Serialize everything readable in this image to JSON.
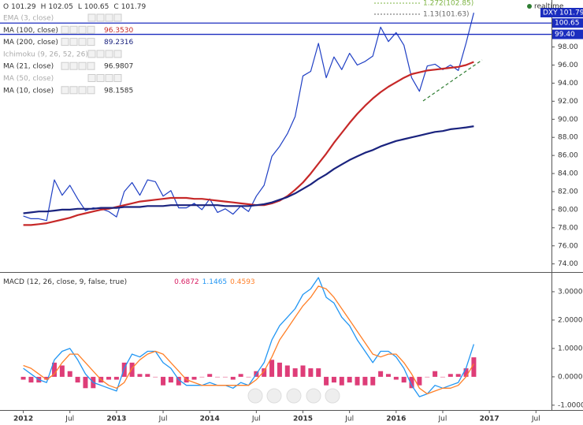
{
  "chart_data": [
    {
      "type": "line",
      "symbol": "DXY",
      "realtime": "realtime",
      "ohlc": [
        {
          "label": "O",
          "value": 101.29
        },
        {
          "label": "H",
          "value": 102.05
        },
        {
          "label": "L",
          "value": 100.65
        },
        {
          "label": "C",
          "value": 101.79
        }
      ],
      "indicators": [
        {
          "name": "EMA (3, close)",
          "muted": true
        },
        {
          "name": "MA (100, close)",
          "value": {
            "value": 96.353,
            "label": "96.3530"
          },
          "color": "#c62828"
        },
        {
          "name": "MA (200, close)",
          "value": {
            "value": 89.2316,
            "label": "89.2316"
          },
          "color": "#1a237e"
        },
        {
          "name": "Ichimoku (9, 26, 52, 26)",
          "muted": true
        },
        {
          "name": "MA (21, close)",
          "value": {
            "value": 96.9807,
            "label": "96.9807"
          },
          "color": "#333333"
        },
        {
          "name": "MA (50, close)",
          "muted": true
        },
        {
          "name": "MA (10, close)",
          "value": {
            "value": 98.1585,
            "label": "98.1585"
          },
          "color": "#333333"
        }
      ],
      "levels": [
        {
          "value": 100.65,
          "color": "#1b2dbf"
        },
        {
          "value": 99.4,
          "label": "99.40",
          "color": "#1b2dbf"
        }
      ],
      "fib": [
        {
          "label": "1.272(102.85)",
          "value": 102.85,
          "color": "#7cb342"
        },
        {
          "label": "1.13(101.63)",
          "value": 101.63,
          "color": "#666666"
        }
      ],
      "xlim": [
        "2011-10",
        "2017-09"
      ],
      "ylim": [
        73.1,
        103.2
      ],
      "yticks": [
        {
          "value": 74,
          "label": "74.00"
        },
        {
          "value": 76,
          "label": "76.00"
        },
        {
          "value": 78,
          "label": "78.00"
        },
        {
          "value": 80,
          "label": "80.00"
        },
        {
          "value": 82,
          "label": "82.00"
        },
        {
          "value": 84,
          "label": "84.00"
        },
        {
          "value": 86,
          "label": "86.00"
        },
        {
          "value": 88,
          "label": "88.00"
        },
        {
          "value": 90,
          "label": "90.00"
        },
        {
          "value": 92,
          "label": "92.00"
        },
        {
          "value": 94,
          "label": "94.00"
        },
        {
          "value": 96,
          "label": "96.00"
        },
        {
          "value": 98,
          "label": "98.00"
        }
      ],
      "x": [
        "2012-01",
        "2012-02",
        "2012-03",
        "2012-04",
        "2012-05",
        "2012-06",
        "2012-07",
        "2012-08",
        "2012-09",
        "2012-10",
        "2012-11",
        "2012-12",
        "2013-01",
        "2013-02",
        "2013-03",
        "2013-04",
        "2013-05",
        "2013-06",
        "2013-07",
        "2013-08",
        "2013-09",
        "2013-10",
        "2013-11",
        "2013-12",
        "2014-01",
        "2014-02",
        "2014-03",
        "2014-04",
        "2014-05",
        "2014-06",
        "2014-07",
        "2014-08",
        "2014-09",
        "2014-10",
        "2014-11",
        "2014-12",
        "2015-01",
        "2015-02",
        "2015-03",
        "2015-04",
        "2015-05",
        "2015-06",
        "2015-07",
        "2015-08",
        "2015-09",
        "2015-10",
        "2015-11",
        "2015-12",
        "2016-01",
        "2016-02",
        "2016-03",
        "2016-04",
        "2016-05",
        "2016-06",
        "2016-07",
        "2016-08",
        "2016-09",
        "2016-10",
        "2016-11"
      ],
      "series": [
        {
          "name": "DXY",
          "color": "#1f3fc4",
          "width": 1.2,
          "values": [
            79.3,
            79.0,
            79.0,
            78.8,
            83.3,
            81.6,
            82.7,
            81.2,
            79.9,
            80.2,
            80.1,
            79.8,
            79.2,
            82.0,
            83.0,
            81.6,
            83.3,
            83.1,
            81.5,
            82.1,
            80.2,
            80.2,
            80.7,
            80.0,
            81.2,
            79.7,
            80.1,
            79.5,
            80.4,
            79.8,
            81.5,
            82.7,
            85.9,
            87.0,
            88.4,
            90.3,
            94.8,
            95.3,
            98.4,
            94.6,
            96.9,
            95.5,
            97.3,
            96.0,
            96.4,
            97.0,
            100.2,
            98.6,
            99.6,
            98.2,
            94.6,
            93.1,
            95.9,
            96.1,
            95.5,
            96.0,
            95.4,
            98.4,
            101.79
          ]
        },
        {
          "color": "#c62828",
          "width": 2.2,
          "values": [
            78.3,
            78.3,
            78.4,
            78.5,
            78.7,
            78.9,
            79.1,
            79.4,
            79.6,
            79.8,
            80.0,
            80.1,
            80.3,
            80.5,
            80.7,
            80.9,
            81.0,
            81.1,
            81.2,
            81.3,
            81.3,
            81.3,
            81.2,
            81.2,
            81.1,
            81.0,
            80.9,
            80.8,
            80.7,
            80.6,
            80.5,
            80.5,
            80.7,
            81.0,
            81.5,
            82.2,
            83.0,
            84.0,
            85.1,
            86.2,
            87.4,
            88.5,
            89.6,
            90.6,
            91.5,
            92.3,
            93.0,
            93.6,
            94.1,
            94.6,
            95.0,
            95.2,
            95.4,
            95.5,
            95.6,
            95.7,
            95.8,
            96.0,
            96.353
          ]
        },
        {
          "color": "#1a237e",
          "width": 2.2,
          "values": [
            79.6,
            79.7,
            79.8,
            79.8,
            79.9,
            80.0,
            80.0,
            80.1,
            80.1,
            80.1,
            80.2,
            80.2,
            80.2,
            80.3,
            80.3,
            80.3,
            80.4,
            80.4,
            80.4,
            80.5,
            80.5,
            80.5,
            80.5,
            80.5,
            80.5,
            80.5,
            80.4,
            80.4,
            80.4,
            80.4,
            80.5,
            80.6,
            80.8,
            81.1,
            81.4,
            81.8,
            82.3,
            82.8,
            83.4,
            83.9,
            84.5,
            85.0,
            85.5,
            85.9,
            86.3,
            86.6,
            87.0,
            87.3,
            87.6,
            87.8,
            88.0,
            88.2,
            88.4,
            88.6,
            88.7,
            88.9,
            89.0,
            89.1,
            89.2316
          ]
        }
      ]
    },
    {
      "type": "line",
      "title": "MACD (12, 26, close, 9, false, true)",
      "xlim": [
        "2011-10",
        "2017-09"
      ],
      "ylim": [
        -1.17,
        3.61
      ],
      "yticks": [
        {
          "value": -1,
          "label": "-1.0000"
        },
        {
          "value": 0,
          "label": "0.0000"
        },
        {
          "value": 1,
          "label": "1.0000"
        },
        {
          "value": 2,
          "label": "2.0000"
        },
        {
          "value": 3,
          "label": "3.0000"
        }
      ],
      "xticks": [
        {
          "value": "2012-01",
          "label": "2012"
        },
        {
          "value": "2012-07",
          "label": "Jul"
        },
        {
          "value": "2013-01",
          "label": "2013"
        },
        {
          "value": "2013-07",
          "label": "Jul"
        },
        {
          "value": "2014-01",
          "label": "2014"
        },
        {
          "value": "2014-07",
          "label": "Jul"
        },
        {
          "value": "2015-01",
          "label": "2015"
        },
        {
          "value": "2015-07",
          "label": "Jul"
        },
        {
          "value": "2016-01",
          "label": "2016"
        },
        {
          "value": "2016-07",
          "label": "Jul"
        },
        {
          "value": "2017-01",
          "label": "2017"
        },
        {
          "value": "2017-07",
          "label": "Jul"
        }
      ],
      "series": [
        {
          "type": "bar",
          "color": "#d81b60",
          "values": [
            -0.1,
            -0.2,
            -0.2,
            -0.1,
            0.5,
            0.4,
            0.2,
            -0.2,
            -0.4,
            -0.4,
            -0.2,
            -0.1,
            -0.1,
            0.5,
            0.5,
            0.1,
            0.1,
            0,
            -0.3,
            -0.2,
            -0.3,
            -0.2,
            -0.1,
            0,
            0.1,
            0,
            0,
            -0.1,
            0.1,
            0,
            0.2,
            0.3,
            0.6,
            0.5,
            0.4,
            0.3,
            0.4,
            0.3,
            0.3,
            -0.3,
            -0.2,
            -0.3,
            -0.2,
            -0.3,
            -0.3,
            -0.3,
            0.2,
            0.1,
            -0.1,
            -0.2,
            -0.4,
            -0.3,
            0,
            0.2,
            0,
            0.1,
            0.1,
            0.3,
            0.6872
          ]
        },
        {
          "type": "line",
          "color": "#2196f3",
          "values": [
            0.3,
            0.1,
            -0.1,
            -0.2,
            0.6,
            0.9,
            1.0,
            0.6,
            0.1,
            -0.2,
            -0.3,
            -0.4,
            -0.5,
            0.3,
            0.8,
            0.7,
            0.9,
            0.9,
            0.5,
            0.3,
            -0.1,
            -0.3,
            -0.3,
            -0.3,
            -0.2,
            -0.3,
            -0.3,
            -0.4,
            -0.2,
            -0.3,
            0.1,
            0.5,
            1.3,
            1.8,
            2.1,
            2.4,
            2.9,
            3.1,
            3.5,
            2.8,
            2.6,
            2.1,
            1.8,
            1.3,
            0.9,
            0.5,
            0.9,
            0.9,
            0.7,
            0.3,
            -0.3,
            -0.7,
            -0.6,
            -0.3,
            -0.4,
            -0.3,
            -0.2,
            0.3,
            1.1465
          ]
        },
        {
          "type": "line",
          "color": "#ff7f27",
          "values": [
            0.4,
            0.3,
            0.1,
            -0.1,
            0.1,
            0.5,
            0.8,
            0.8,
            0.5,
            0.2,
            -0.1,
            -0.3,
            -0.4,
            -0.2,
            0.3,
            0.6,
            0.8,
            0.9,
            0.8,
            0.5,
            0.2,
            -0.1,
            -0.2,
            -0.3,
            -0.3,
            -0.3,
            -0.3,
            -0.3,
            -0.3,
            -0.3,
            -0.1,
            0.2,
            0.7,
            1.3,
            1.7,
            2.1,
            2.5,
            2.8,
            3.2,
            3.1,
            2.8,
            2.4,
            2.0,
            1.6,
            1.2,
            0.8,
            0.7,
            0.8,
            0.8,
            0.5,
            0.1,
            -0.4,
            -0.6,
            -0.5,
            -0.4,
            -0.4,
            -0.3,
            0.0,
            0.4593
          ]
        }
      ]
    }
  ]
}
